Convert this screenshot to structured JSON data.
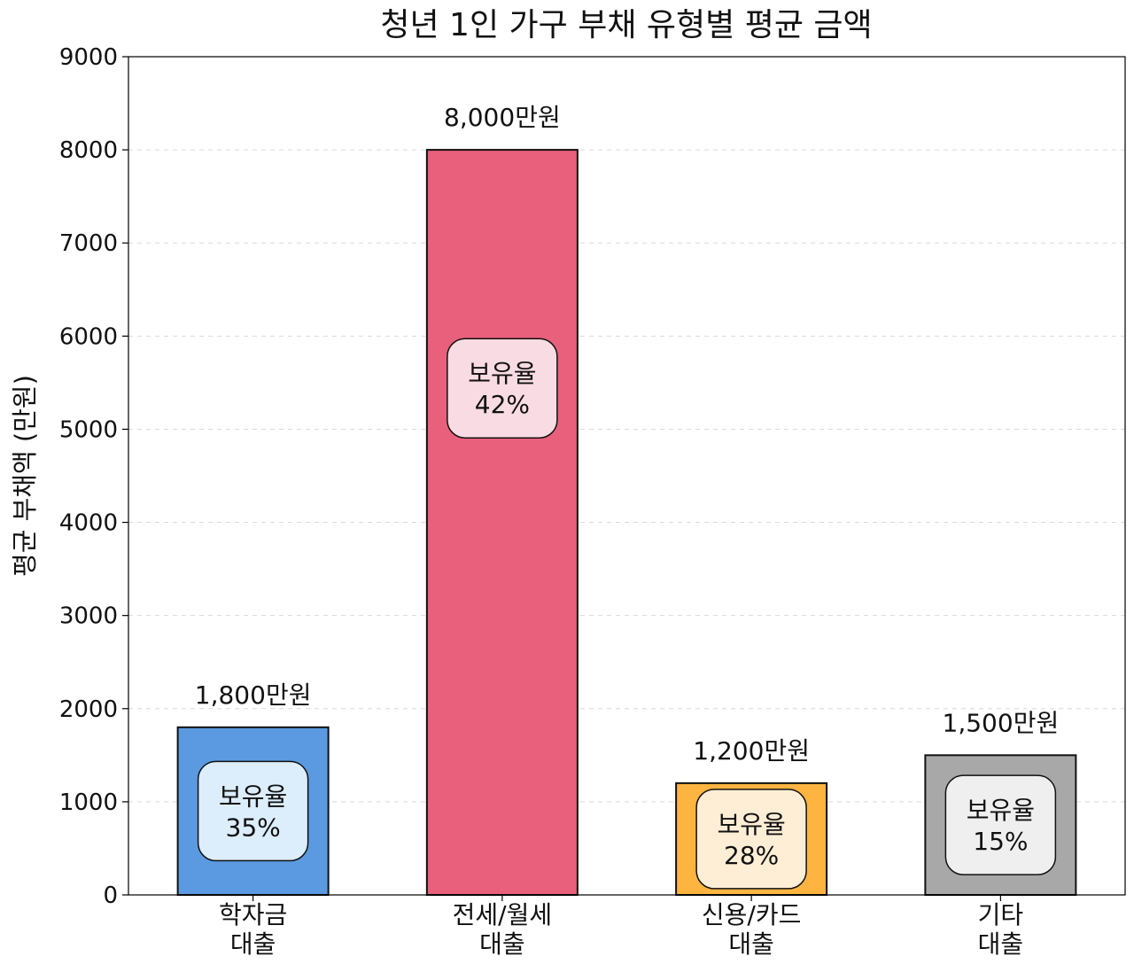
{
  "chart_data": {
    "type": "bar",
    "title": "청년 1인 가구 부채 유형별 평균 금액",
    "ylabel": "평균 부채액 (만원)",
    "xlabel": "",
    "ylim": [
      0,
      9000
    ],
    "yticks": [
      "0",
      "1000",
      "2000",
      "3000",
      "4000",
      "5000",
      "6000",
      "7000",
      "8000",
      "9000"
    ],
    "grid": "horizontal dashed",
    "categories": [
      [
        "학자금",
        "대출"
      ],
      [
        "전세/월세",
        "대출"
      ],
      [
        "신용/카드",
        "대출"
      ],
      [
        "기타",
        "대출"
      ]
    ],
    "values": [
      1800,
      8000,
      1200,
      1500
    ],
    "value_labels": [
      "1,800만원",
      "8,000만원",
      "1,200만원",
      "1,500만원"
    ],
    "inner_labels": [
      [
        "보유율",
        "35%"
      ],
      [
        "보유율",
        "42%"
      ],
      [
        "보유율",
        "28%"
      ],
      [
        "보유율",
        "15%"
      ]
    ],
    "ownership_rate": [
      35,
      42,
      28,
      15
    ],
    "colors": [
      "#5b9ae0",
      "#e8607c",
      "#fdb441",
      "#a8a8a8"
    ],
    "box_colors": [
      "#dcedfb",
      "#f9dbe3",
      "#ffeed6",
      "#efefef"
    ]
  }
}
